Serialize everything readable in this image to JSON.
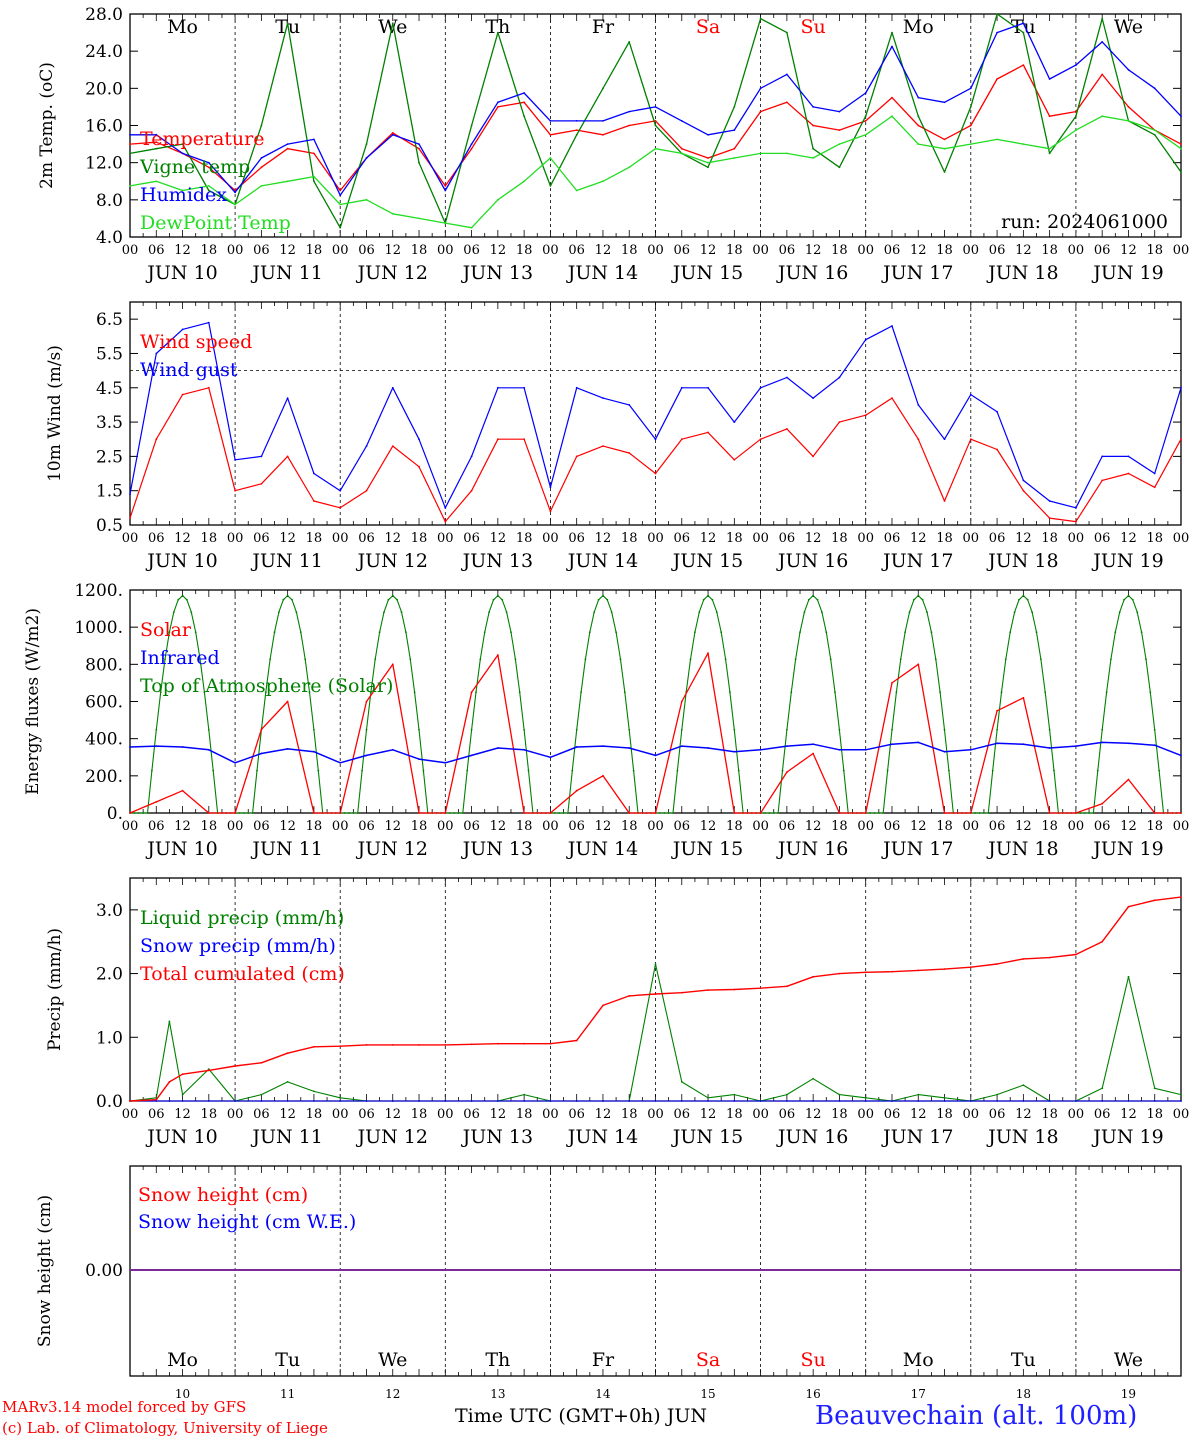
{
  "days": {
    "names": [
      "Mo",
      "Tu",
      "We",
      "Th",
      "Fr",
      "Sa",
      "Su",
      "Mo",
      "Tu",
      "We"
    ],
    "name_colors": [
      "#000000",
      "#000000",
      "#000000",
      "#000000",
      "#000000",
      "#ff0000",
      "#ff0000",
      "#000000",
      "#000000",
      "#000000"
    ],
    "dates": [
      "JUN 10",
      "JUN 11",
      "JUN 12",
      "JUN 13",
      "JUN 14",
      "JUN 15",
      "JUN 16",
      "JUN 17",
      "JUN 18",
      "JUN 19"
    ],
    "numbers": [
      "10",
      "11",
      "12",
      "13",
      "14",
      "15",
      "16",
      "17",
      "18",
      "19"
    ],
    "hour_ticks": [
      "00",
      "06",
      "12",
      "18"
    ],
    "final_hour": "00"
  },
  "run_label": "run: 2024061000",
  "footer": {
    "credit_line1": "MARv3.14 model forced by GFS",
    "credit_line2": "(c) Lab. of Climatology, University of Liege",
    "x_axis_label": "Time UTC (GMT+0h) JUN",
    "station": "Beauvechain (alt. 100m)"
  },
  "colors": {
    "red": "#ff0000",
    "green": "#008000",
    "blue": "#0000ff",
    "lightgreen": "#22dd22",
    "purple": "#7a2a9a"
  },
  "chart_data": [
    {
      "type": "line",
      "ylabel": "2m Temp. (oC)",
      "ylim": [
        4,
        28
      ],
      "yticks": [
        "4.0",
        "8.0",
        "12.0",
        "16.0",
        "20.0",
        "24.0",
        "28.0"
      ],
      "x_hours": [
        0,
        6,
        12,
        18,
        24,
        30,
        36,
        42,
        48,
        54,
        60,
        66,
        72,
        78,
        84,
        90,
        96,
        102,
        108,
        114,
        120,
        126,
        132,
        138,
        144,
        150,
        156,
        162,
        168,
        174,
        180,
        186,
        192,
        198,
        204,
        210,
        216,
        222,
        228,
        234,
        240
      ],
      "series": [
        {
          "name": "Temperature",
          "color": "#ff0000",
          "values": [
            14.0,
            14.2,
            13.0,
            11.5,
            9.0,
            11.5,
            13.5,
            13.0,
            9.0,
            12.5,
            15.2,
            13.5,
            9.5,
            13.5,
            18.0,
            18.5,
            15.0,
            15.5,
            15.0,
            16.0,
            16.5,
            13.5,
            12.5,
            13.5,
            17.5,
            18.5,
            16.0,
            15.5,
            16.5,
            19.0,
            16.0,
            14.5,
            16.0,
            21.0,
            22.5,
            17.0,
            17.5,
            21.5,
            18.0,
            15.5,
            14.0
          ]
        },
        {
          "name": "Vigne temp",
          "color": "#008000",
          "values": [
            13.0,
            13.5,
            14.0,
            9.0,
            7.5,
            16.0,
            27.0,
            10.0,
            5.0,
            14.0,
            27.0,
            12.0,
            5.5,
            16.0,
            26.0,
            17.0,
            9.5,
            15.0,
            20.0,
            25.0,
            16.0,
            13.0,
            11.5,
            18.0,
            27.5,
            26.0,
            13.5,
            11.5,
            17.0,
            26.0,
            17.0,
            11.0,
            18.0,
            28.0,
            26.0,
            13.0,
            17.0,
            27.5,
            16.5,
            15.0,
            11.0
          ]
        },
        {
          "name": "Humidex",
          "color": "#0000ff",
          "values": [
            15.0,
            15.0,
            13.0,
            12.0,
            8.8,
            12.5,
            14.0,
            14.5,
            8.5,
            12.5,
            15.0,
            14.0,
            9.0,
            14.0,
            18.5,
            19.5,
            16.5,
            16.5,
            16.5,
            17.5,
            18.0,
            16.5,
            15.0,
            15.5,
            20.0,
            21.5,
            18.0,
            17.5,
            19.5,
            24.5,
            19.0,
            18.5,
            20.0,
            26.0,
            27.0,
            21.0,
            22.5,
            25.0,
            22.0,
            20.0,
            17.0
          ]
        },
        {
          "name": "DewPoint Temp",
          "color": "#22dd22",
          "values": [
            9.5,
            10.0,
            9.0,
            9.5,
            7.5,
            9.5,
            10.0,
            10.5,
            7.5,
            8.0,
            6.5,
            6.0,
            5.5,
            5.0,
            8.0,
            10.0,
            12.5,
            9.0,
            10.0,
            11.5,
            13.5,
            13.0,
            12.0,
            12.5,
            13.0,
            13.0,
            12.5,
            14.0,
            15.0,
            17.0,
            14.0,
            13.5,
            14.0,
            14.5,
            14.0,
            13.5,
            15.5,
            17.0,
            16.5,
            15.5,
            13.5
          ]
        }
      ]
    },
    {
      "type": "line",
      "ylabel": "10m Wind (m/s)",
      "ylim": [
        0.5,
        7.0
      ],
      "yticks": [
        "0.5",
        "1.5",
        "2.5",
        "3.5",
        "4.5",
        "5.5",
        "6.5"
      ],
      "reference_line": 5.0,
      "x_hours": [
        0,
        6,
        12,
        18,
        24,
        30,
        36,
        42,
        48,
        54,
        60,
        66,
        72,
        78,
        84,
        90,
        96,
        102,
        108,
        114,
        120,
        126,
        132,
        138,
        144,
        150,
        156,
        162,
        168,
        174,
        180,
        186,
        192,
        198,
        204,
        210,
        216,
        222,
        228,
        234,
        240
      ],
      "series": [
        {
          "name": "Wind speed",
          "color": "#ff0000",
          "values": [
            0.7,
            3.0,
            4.3,
            4.5,
            1.5,
            1.7,
            2.5,
            1.2,
            1.0,
            1.5,
            2.8,
            2.2,
            0.6,
            1.5,
            3.0,
            3.0,
            0.9,
            2.5,
            2.8,
            2.6,
            2.0,
            3.0,
            3.2,
            2.4,
            3.0,
            3.3,
            2.5,
            3.5,
            3.7,
            4.2,
            3.0,
            1.2,
            3.0,
            2.7,
            1.5,
            0.7,
            0.6,
            1.8,
            2.0,
            1.6,
            3.0
          ]
        },
        {
          "name": "Wind gust",
          "color": "#0000ff",
          "values": [
            1.4,
            5.5,
            6.2,
            6.4,
            2.4,
            2.5,
            4.2,
            2.0,
            1.5,
            2.8,
            4.5,
            3.0,
            1.0,
            2.5,
            4.5,
            4.5,
            1.6,
            4.5,
            4.2,
            4.0,
            3.0,
            4.5,
            4.5,
            3.5,
            4.5,
            4.8,
            4.2,
            4.8,
            5.9,
            6.3,
            4.0,
            3.0,
            4.3,
            3.8,
            1.8,
            1.2,
            1.0,
            2.5,
            2.5,
            2.0,
            4.5
          ]
        }
      ]
    },
    {
      "type": "line",
      "ylabel": "Energy fluxes (W/m2)",
      "ylim": [
        0,
        1200
      ],
      "yticks": [
        "0.",
        "200.",
        "400.",
        "600.",
        "800.",
        "1000.",
        "1200."
      ],
      "x_hours": [
        0,
        6,
        12,
        18,
        24,
        30,
        36,
        42,
        48,
        54,
        60,
        66,
        72,
        78,
        84,
        90,
        96,
        102,
        108,
        114,
        120,
        126,
        132,
        138,
        144,
        150,
        156,
        162,
        168,
        174,
        180,
        186,
        192,
        198,
        204,
        210,
        216,
        222,
        228,
        234,
        240
      ],
      "series": [
        {
          "name": "Solar",
          "color": "#ff0000",
          "values": [
            0,
            60,
            120,
            0,
            0,
            450,
            600,
            0,
            0,
            600,
            800,
            0,
            0,
            650,
            850,
            0,
            0,
            120,
            200,
            0,
            0,
            600,
            860,
            0,
            0,
            220,
            320,
            0,
            0,
            700,
            800,
            0,
            0,
            550,
            620,
            0,
            0,
            50,
            180,
            0,
            0
          ]
        },
        {
          "name": "Infrared",
          "color": "#0000ff",
          "values": [
            355,
            360,
            355,
            340,
            270,
            320,
            345,
            330,
            270,
            310,
            340,
            290,
            270,
            310,
            350,
            340,
            300,
            355,
            360,
            350,
            310,
            360,
            350,
            330,
            340,
            360,
            370,
            340,
            340,
            370,
            380,
            330,
            340,
            375,
            370,
            350,
            360,
            380,
            375,
            365,
            310
          ]
        },
        {
          "name": "Top of Atmosphere (Solar)",
          "color": "#008000",
          "peak": 1170,
          "daylight_hours": [
            4,
            20
          ]
        }
      ]
    },
    {
      "type": "line",
      "ylabel": "Precip (mm/h)",
      "ylim": [
        0,
        3.5
      ],
      "yticks": [
        "0.0",
        "1.0",
        "2.0",
        "3.0"
      ],
      "x_hours": [
        0,
        6,
        9,
        12,
        18,
        24,
        30,
        36,
        42,
        48,
        54,
        60,
        66,
        72,
        78,
        84,
        90,
        96,
        102,
        108,
        114,
        120,
        126,
        132,
        138,
        144,
        150,
        156,
        162,
        168,
        174,
        180,
        186,
        192,
        198,
        204,
        210,
        216,
        222,
        228,
        234,
        240
      ],
      "series": [
        {
          "name": "Liquid precip (mm/h)",
          "color": "#008000",
          "values": [
            0.0,
            0.05,
            1.25,
            0.1,
            0.5,
            0.0,
            0.1,
            0.3,
            0.15,
            0.05,
            0.0,
            0.0,
            0.0,
            0.0,
            0.0,
            0.0,
            0.1,
            0.0,
            0.0,
            0.0,
            0.0,
            2.15,
            0.3,
            0.05,
            0.1,
            0.0,
            0.1,
            0.35,
            0.1,
            0.05,
            0.0,
            0.1,
            0.05,
            0.0,
            0.1,
            0.25,
            0.0,
            0.0,
            0.2,
            1.95,
            0.2,
            0.1
          ]
        },
        {
          "name": "Snow precip (mm/h)",
          "color": "#0000ff",
          "values": [
            0,
            0,
            0,
            0,
            0,
            0,
            0,
            0,
            0,
            0,
            0,
            0,
            0,
            0,
            0,
            0,
            0,
            0,
            0,
            0,
            0,
            0,
            0,
            0,
            0,
            0,
            0,
            0,
            0,
            0,
            0,
            0,
            0,
            0,
            0,
            0,
            0,
            0,
            0,
            0,
            0,
            0
          ]
        },
        {
          "name": "Total cumulated (cm)",
          "color": "#ff0000",
          "values": [
            0.0,
            0.02,
            0.3,
            0.42,
            0.48,
            0.55,
            0.6,
            0.75,
            0.85,
            0.86,
            0.88,
            0.88,
            0.88,
            0.88,
            0.89,
            0.9,
            0.9,
            0.9,
            0.95,
            1.5,
            1.65,
            1.68,
            1.7,
            1.74,
            1.75,
            1.77,
            1.8,
            1.95,
            2.0,
            2.02,
            2.03,
            2.05,
            2.07,
            2.1,
            2.15,
            2.23,
            2.25,
            2.3,
            2.5,
            3.05,
            3.15,
            3.2
          ]
        }
      ]
    },
    {
      "type": "line",
      "ylabel": "Snow height (cm)",
      "yticks": [
        "0.00"
      ],
      "series": [
        {
          "name": "Snow height (cm)",
          "color": "#ff0000",
          "values": [
            0.0,
            0.0
          ]
        },
        {
          "name": "Snow height (cm W.E.)",
          "color": "#0000ff",
          "values": [
            0.0,
            0.0
          ]
        }
      ]
    }
  ]
}
